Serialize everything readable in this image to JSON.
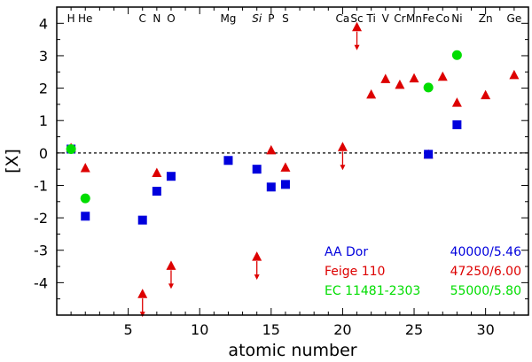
{
  "chart_data": {
    "type": "scatter",
    "xlabel": "atomic number",
    "ylabel": "[X]",
    "xlim": [
      0,
      33
    ],
    "ylim": [
      -5,
      4.5
    ],
    "x_ticks": [
      5,
      10,
      15,
      20,
      25,
      30
    ],
    "y_ticks": [
      4,
      3,
      2,
      1,
      0,
      -1,
      -2,
      -3,
      -4
    ],
    "zero_line": "dashed",
    "element_labels": [
      {
        "label": "H",
        "z": 1
      },
      {
        "label": "He",
        "z": 2
      },
      {
        "label": "C",
        "z": 6
      },
      {
        "label": "N",
        "z": 7
      },
      {
        "label": "O",
        "z": 8
      },
      {
        "label": "Mg",
        "z": 12
      },
      {
        "label": "Si",
        "z": 14
      },
      {
        "label": "P",
        "z": 15
      },
      {
        "label": "S",
        "z": 16
      },
      {
        "label": "Ca",
        "z": 20
      },
      {
        "label": "Sc",
        "z": 21
      },
      {
        "label": "Ti",
        "z": 22
      },
      {
        "label": "V",
        "z": 23
      },
      {
        "label": "Cr",
        "z": 24
      },
      {
        "label": "Mn",
        "z": 25
      },
      {
        "label": "Fe",
        "z": 26
      },
      {
        "label": "Co",
        "z": 27
      },
      {
        "label": "Ni",
        "z": 28
      },
      {
        "label": "Zn",
        "z": 30
      },
      {
        "label": "Ge",
        "z": 32
      }
    ],
    "series": [
      {
        "name": "AA Dor",
        "params": "40000/5.46",
        "color": "#0000dd",
        "marker": "square",
        "points": [
          {
            "x": 1,
            "y": 0.12
          },
          {
            "x": 2,
            "y": -1.95
          },
          {
            "x": 6,
            "y": -2.07
          },
          {
            "x": 7,
            "y": -1.18
          },
          {
            "x": 8,
            "y": -0.72
          },
          {
            "x": 12,
            "y": -0.23
          },
          {
            "x": 14,
            "y": -0.5
          },
          {
            "x": 15,
            "y": -1.05
          },
          {
            "x": 16,
            "y": -0.97
          },
          {
            "x": 26,
            "y": -0.04
          },
          {
            "x": 28,
            "y": 0.87
          }
        ]
      },
      {
        "name": "Feige 110",
        "params": "47250/6.00",
        "color": "#dd0000",
        "marker": "triangle",
        "points": [
          {
            "x": 1,
            "y": 0.15
          },
          {
            "x": 2,
            "y": -0.47
          },
          {
            "x": 6,
            "y": -4.35,
            "limit": "upper"
          },
          {
            "x": 7,
            "y": -0.62
          },
          {
            "x": 8,
            "y": -3.48,
            "limit": "upper"
          },
          {
            "x": 14,
            "y": -3.2,
            "limit": "upper"
          },
          {
            "x": 15,
            "y": 0.08
          },
          {
            "x": 16,
            "y": -0.45
          },
          {
            "x": 20,
            "y": 0.18,
            "limit": "upper"
          },
          {
            "x": 21,
            "y": 3.88,
            "limit": "upper"
          },
          {
            "x": 22,
            "y": 1.8
          },
          {
            "x": 23,
            "y": 2.28
          },
          {
            "x": 24,
            "y": 2.1
          },
          {
            "x": 25,
            "y": 2.3
          },
          {
            "x": 26,
            "y": -0.05
          },
          {
            "x": 27,
            "y": 2.35
          },
          {
            "x": 28,
            "y": 1.55
          },
          {
            "x": 30,
            "y": 1.78
          },
          {
            "x": 32,
            "y": 2.4
          }
        ]
      },
      {
        "name": "EC 11481-2303",
        "params": "55000/5.80",
        "color": "#00dd00",
        "marker": "circle",
        "points": [
          {
            "x": 1,
            "y": 0.12
          },
          {
            "x": 2,
            "y": -1.4
          },
          {
            "x": 26,
            "y": 2.02
          },
          {
            "x": 28,
            "y": 3.02
          }
        ]
      }
    ],
    "legend_position": "bottom-right"
  }
}
